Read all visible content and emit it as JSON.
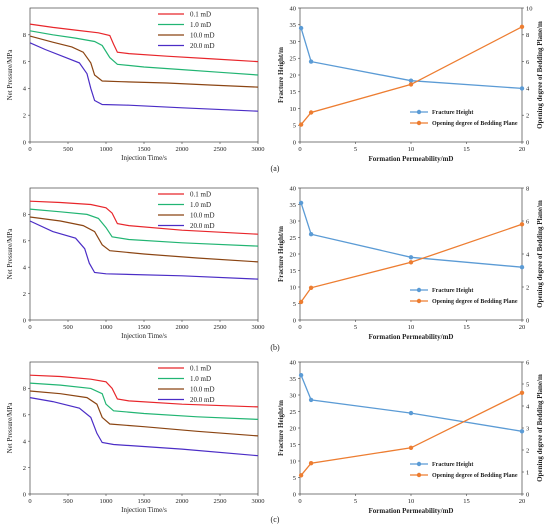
{
  "panel_labels": [
    "(a)",
    "(b)",
    "(c)"
  ],
  "chart_data": [
    {
      "type": "line",
      "panel": "(a)",
      "side": "left",
      "xlabel": "Injection Time/s",
      "ylabel": "Net Pressure/MPa",
      "xlim": [
        0,
        3000
      ],
      "ylim": [
        0,
        10
      ],
      "xticks": [
        "0",
        "500",
        "1000",
        "1500",
        "2000",
        "2500",
        "3000"
      ],
      "yticks": [
        "0",
        "2",
        "4",
        "6",
        "8"
      ],
      "legend_position": "top-center",
      "series": [
        {
          "name": "0.1 mD",
          "color": "#e8262b",
          "points": [
            [
              0,
              8.8
            ],
            [
              300,
              8.55
            ],
            [
              600,
              8.35
            ],
            [
              900,
              8.15
            ],
            [
              1050,
              7.95
            ],
            [
              1100,
              7.3
            ],
            [
              1150,
              6.7
            ],
            [
              1300,
              6.6
            ],
            [
              1800,
              6.4
            ],
            [
              2400,
              6.2
            ],
            [
              3000,
              6.0
            ]
          ]
        },
        {
          "name": "1.0 mD",
          "color": "#22b573",
          "points": [
            [
              0,
              8.3
            ],
            [
              300,
              8.0
            ],
            [
              600,
              7.75
            ],
            [
              850,
              7.5
            ],
            [
              950,
              7.2
            ],
            [
              1050,
              6.3
            ],
            [
              1150,
              5.8
            ],
            [
              1500,
              5.6
            ],
            [
              2000,
              5.4
            ],
            [
              2500,
              5.2
            ],
            [
              3000,
              5.0
            ]
          ]
        },
        {
          "name": "10.0 mD",
          "color": "#8b4513",
          "points": [
            [
              0,
              7.9
            ],
            [
              300,
              7.45
            ],
            [
              550,
              7.1
            ],
            [
              700,
              6.7
            ],
            [
              800,
              5.9
            ],
            [
              850,
              5.0
            ],
            [
              950,
              4.55
            ],
            [
              1200,
              4.5
            ],
            [
              1800,
              4.4
            ],
            [
              2400,
              4.25
            ],
            [
              3000,
              4.1
            ]
          ]
        },
        {
          "name": "20.0 mD",
          "color": "#4b2dc6",
          "points": [
            [
              0,
              7.4
            ],
            [
              200,
              6.9
            ],
            [
              450,
              6.35
            ],
            [
              650,
              5.9
            ],
            [
              750,
              5.1
            ],
            [
              800,
              4.0
            ],
            [
              850,
              3.1
            ],
            [
              950,
              2.8
            ],
            [
              1300,
              2.75
            ],
            [
              2000,
              2.55
            ],
            [
              3000,
              2.3
            ]
          ]
        }
      ]
    },
    {
      "type": "line",
      "panel": "(a)",
      "side": "right",
      "xlabel": "Formation Permeability/mD",
      "ylabel": "Fracture Height/m",
      "y2label": "Opening degree of Bedding Plane/m",
      "xlim": [
        0,
        20
      ],
      "ylim": [
        0,
        40
      ],
      "y2lim": [
        0,
        10
      ],
      "xticks": [
        "0",
        "5",
        "10",
        "15",
        "20"
      ],
      "yticks": [
        "0",
        "5",
        "10",
        "15",
        "20",
        "25",
        "30",
        "35",
        "40"
      ],
      "y2ticks": [
        "0",
        "2",
        "4",
        "6",
        "8",
        "10"
      ],
      "legend_position": "lower-right",
      "series": [
        {
          "name": "Fracture Height",
          "axis": "left",
          "color": "#5b9bd5",
          "points": [
            [
              0.1,
              34
            ],
            [
              1,
              24
            ],
            [
              10,
              18.3
            ],
            [
              20,
              16
            ]
          ]
        },
        {
          "name": "Opening degree of Bedding Plane",
          "axis": "right",
          "color": "#ed7d31",
          "points": [
            [
              0.1,
              1.3
            ],
            [
              1,
              2.2
            ],
            [
              10,
              4.3
            ],
            [
              20,
              8.6
            ]
          ]
        }
      ]
    },
    {
      "type": "line",
      "panel": "(b)",
      "side": "left",
      "xlabel": "Injection Time/s",
      "ylabel": "Net Pressure/MPa",
      "xlim": [
        0,
        3000
      ],
      "ylim": [
        0,
        10
      ],
      "xticks": [
        "0",
        "500",
        "1000",
        "1500",
        "2000",
        "2500",
        "3000"
      ],
      "yticks": [
        "0",
        "2",
        "4",
        "6",
        "8"
      ],
      "legend_position": "top-center",
      "series": [
        {
          "name": "0.1 mD",
          "color": "#e8262b",
          "points": [
            [
              0,
              9.0
            ],
            [
              400,
              8.9
            ],
            [
              800,
              8.75
            ],
            [
              1000,
              8.5
            ],
            [
              1080,
              8.1
            ],
            [
              1150,
              7.3
            ],
            [
              1300,
              7.15
            ],
            [
              2000,
              6.8
            ],
            [
              3000,
              6.5
            ]
          ]
        },
        {
          "name": "1.0 mD",
          "color": "#22b573",
          "points": [
            [
              0,
              8.4
            ],
            [
              400,
              8.2
            ],
            [
              750,
              8.0
            ],
            [
              900,
              7.7
            ],
            [
              1000,
              7.0
            ],
            [
              1080,
              6.3
            ],
            [
              1300,
              6.1
            ],
            [
              2000,
              5.85
            ],
            [
              3000,
              5.6
            ]
          ]
        },
        {
          "name": "10.0 mD",
          "color": "#8b4513",
          "points": [
            [
              0,
              7.8
            ],
            [
              400,
              7.5
            ],
            [
              700,
              7.15
            ],
            [
              850,
              6.7
            ],
            [
              950,
              5.7
            ],
            [
              1050,
              5.25
            ],
            [
              1500,
              5.0
            ],
            [
              2200,
              4.7
            ],
            [
              3000,
              4.4
            ]
          ]
        },
        {
          "name": "20.0 mD",
          "color": "#4b2dc6",
          "points": [
            [
              0,
              7.5
            ],
            [
              300,
              6.7
            ],
            [
              600,
              6.2
            ],
            [
              720,
              5.4
            ],
            [
              780,
              4.3
            ],
            [
              850,
              3.6
            ],
            [
              1000,
              3.5
            ],
            [
              2000,
              3.35
            ],
            [
              3000,
              3.1
            ]
          ]
        }
      ]
    },
    {
      "type": "line",
      "panel": "(b)",
      "side": "right",
      "xlabel": "Formation Permeability/mD",
      "ylabel": "Fracture Height/m",
      "y2label": "Opening degree of Bedding Plane/m",
      "xlim": [
        0,
        20
      ],
      "ylim": [
        0,
        40
      ],
      "y2lim": [
        0,
        8
      ],
      "xticks": [
        "0",
        "5",
        "10",
        "15",
        "20"
      ],
      "yticks": [
        "0",
        "5",
        "10",
        "15",
        "20",
        "25",
        "30",
        "35",
        "40"
      ],
      "y2ticks": [
        "0",
        "2",
        "4",
        "6",
        "8"
      ],
      "legend_position": "lower-right",
      "series": [
        {
          "name": "Fracture Height",
          "axis": "left",
          "color": "#5b9bd5",
          "points": [
            [
              0.1,
              35.5
            ],
            [
              1,
              26
            ],
            [
              10,
              19
            ],
            [
              20,
              16
            ]
          ]
        },
        {
          "name": "Opening degree of Bedding Plane",
          "axis": "right",
          "color": "#ed7d31",
          "points": [
            [
              0.1,
              1.1
            ],
            [
              1,
              1.95
            ],
            [
              10,
              3.5
            ],
            [
              20,
              5.8
            ]
          ]
        }
      ]
    },
    {
      "type": "line",
      "panel": "(c)",
      "side": "left",
      "xlabel": "Injection Time/s",
      "ylabel": "Net Pressure/MPa",
      "xlim": [
        0,
        3000
      ],
      "ylim": [
        0,
        10
      ],
      "xticks": [
        "0",
        "500",
        "1000",
        "1500",
        "2000",
        "2500",
        "3000"
      ],
      "yticks": [
        "0",
        "2",
        "4",
        "6",
        "8"
      ],
      "legend_position": "top-center",
      "series": [
        {
          "name": "0.1 mD",
          "color": "#e8262b",
          "points": [
            [
              0,
              9.0
            ],
            [
              400,
              8.9
            ],
            [
              800,
              8.7
            ],
            [
              1000,
              8.5
            ],
            [
              1080,
              8.0
            ],
            [
              1150,
              7.2
            ],
            [
              1300,
              7.05
            ],
            [
              2000,
              6.8
            ],
            [
              3000,
              6.6
            ]
          ]
        },
        {
          "name": "1.0 mD",
          "color": "#22b573",
          "points": [
            [
              0,
              8.4
            ],
            [
              400,
              8.25
            ],
            [
              800,
              8.0
            ],
            [
              950,
              7.6
            ],
            [
              1000,
              6.8
            ],
            [
              1100,
              6.3
            ],
            [
              1500,
              6.1
            ],
            [
              2200,
              5.85
            ],
            [
              3000,
              5.65
            ]
          ]
        },
        {
          "name": "10.0 mD",
          "color": "#8b4513",
          "points": [
            [
              0,
              7.8
            ],
            [
              400,
              7.6
            ],
            [
              750,
              7.3
            ],
            [
              880,
              6.8
            ],
            [
              950,
              5.8
            ],
            [
              1050,
              5.3
            ],
            [
              1500,
              5.1
            ],
            [
              2200,
              4.75
            ],
            [
              3000,
              4.4
            ]
          ]
        },
        {
          "name": "20.0 mD",
          "color": "#4b2dc6",
          "points": [
            [
              0,
              7.3
            ],
            [
              300,
              7.0
            ],
            [
              650,
              6.5
            ],
            [
              800,
              5.8
            ],
            [
              880,
              4.6
            ],
            [
              950,
              3.9
            ],
            [
              1100,
              3.75
            ],
            [
              2000,
              3.4
            ],
            [
              3000,
              2.9
            ]
          ]
        }
      ]
    },
    {
      "type": "line",
      "panel": "(c)",
      "side": "right",
      "xlabel": "Formation Permeability/mD",
      "ylabel": "Fracture Height/m",
      "y2label": "Opening degree of Bedding Plane/m",
      "xlim": [
        0,
        20
      ],
      "ylim": [
        0,
        40
      ],
      "y2lim": [
        0,
        6
      ],
      "xticks": [
        "0",
        "5",
        "10",
        "15",
        "20"
      ],
      "yticks": [
        "0",
        "5",
        "10",
        "15",
        "20",
        "25",
        "30",
        "35",
        "40"
      ],
      "y2ticks": [
        "0",
        "1",
        "2",
        "3",
        "4",
        "5",
        "6"
      ],
      "legend_position": "lower-right",
      "series": [
        {
          "name": "Fracture Height",
          "axis": "left",
          "color": "#5b9bd5",
          "points": [
            [
              0.1,
              36
            ],
            [
              1,
              28.5
            ],
            [
              10,
              24.5
            ],
            [
              20,
              19
            ]
          ]
        },
        {
          "name": "Opening degree of Bedding Plane",
          "axis": "right",
          "color": "#ed7d31",
          "points": [
            [
              0.1,
              0.85
            ],
            [
              1,
              1.4
            ],
            [
              10,
              2.1
            ],
            [
              20,
              4.6
            ]
          ]
        }
      ]
    }
  ]
}
